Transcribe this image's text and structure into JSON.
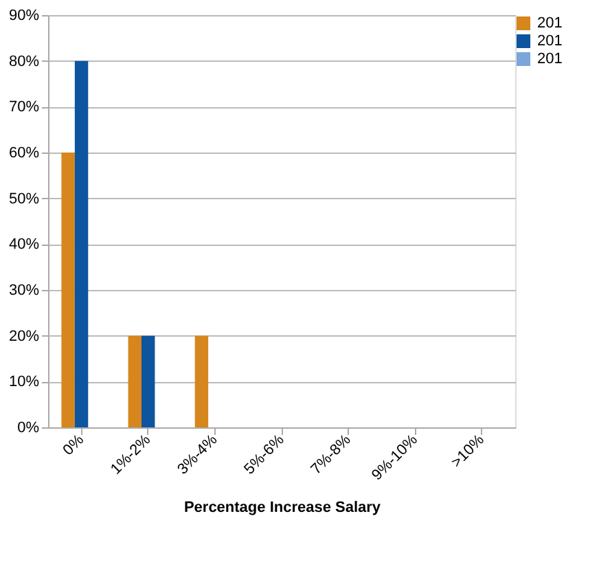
{
  "chart_data": {
    "type": "bar",
    "xlabel": "Percentage Increase Salary",
    "categories": [
      "0%",
      "1%-2%",
      "3%-4%",
      "5%-6%",
      "7%-8%",
      "9%-10%",
      ">10%"
    ],
    "series": [
      {
        "name": "201",
        "color": "#d6861c",
        "values": [
          60,
          20,
          20,
          0,
          0,
          0,
          0
        ]
      },
      {
        "name": "201",
        "color": "#0d559e",
        "values": [
          80,
          20,
          0,
          0,
          0,
          0,
          0
        ]
      },
      {
        "name": "201",
        "color": "#7aa6dc",
        "values": [
          0,
          0,
          0,
          0,
          0,
          0,
          0
        ]
      }
    ],
    "ylim": [
      0,
      90
    ],
    "yticks": [
      {
        "value": 0,
        "label": "0%"
      },
      {
        "value": 10,
        "label": "10%"
      },
      {
        "value": 20,
        "label": "20%"
      },
      {
        "value": 30,
        "label": "30%"
      },
      {
        "value": 40,
        "label": "40%"
      },
      {
        "value": 50,
        "label": "50%"
      },
      {
        "value": 60,
        "label": "60%"
      },
      {
        "value": 70,
        "label": "70%"
      },
      {
        "value": 80,
        "label": "80%"
      },
      {
        "value": 90,
        "label": "90%"
      }
    ],
    "grid": "y",
    "legend": "right"
  }
}
